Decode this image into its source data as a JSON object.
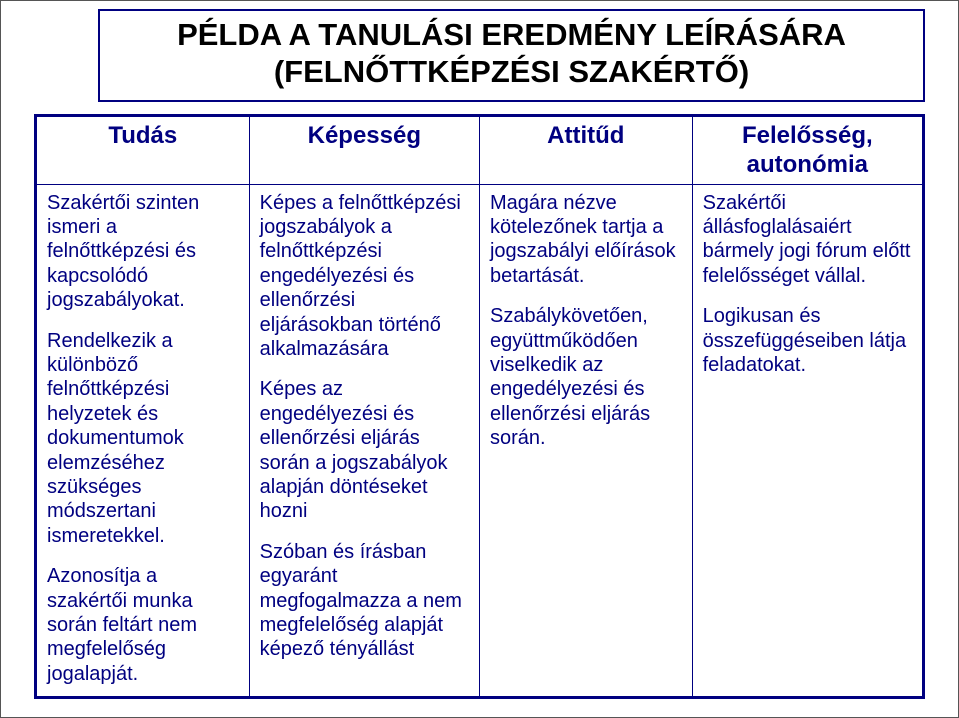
{
  "title": {
    "line1": "PÉLDA A TANULÁSI EREDMÉNY LEÍRÁSÁRA",
    "line2": "(FELNŐTTKÉPZÉSI SZAKÉRTŐ)"
  },
  "headers": {
    "col1": "Tudás",
    "col2": "Képesség",
    "col3": "Attitűd",
    "col4": "Felelősség, autonómia"
  },
  "cells": {
    "c1p1": "Szakértői szinten ismeri a felnőttképzési és kapcsolódó jogszabályokat.",
    "c1p2": "Rendelkezik a különböző felnőttképzési helyzetek és dokumentumok elemzéséhez szükséges módszertani ismeretekkel.",
    "c1p3": "Azonosítja a szakértői munka során feltárt nem megfelelőség jogalapját.",
    "c2p1": "Képes a felnőttképzési jogszabályok a felnőttképzési engedélyezési és ellenőrzési eljárásokban történő alkalmazására",
    "c2p2": "Képes az engedélyezési és ellenőrzési eljárás során a jogszabályok alapján döntéseket hozni",
    "c2p3": "Szóban és írásban egyaránt megfogalmazza a nem megfelelőség alapját képező tényállást",
    "c3p1": "Magára nézve kötelezőnek tartja a jogszabályi előírások betartását.",
    "c3p2": "Szabálykövetően, együttműködően viselkedik az engedélyezési és ellenőrzési eljárás során.",
    "c4p1": "Szakértői állásfoglalásaiért bármely jogi fórum előtt felelősséget vállal.",
    "c4p2": "Logikusan és összefüggéseiben látja feladatokat."
  },
  "colors": {
    "border": "#000080",
    "text": "#000080",
    "title_text": "#000000",
    "background": "#ffffff"
  },
  "fonts": {
    "title_size": 31,
    "header_size": 24,
    "body_size": 20,
    "family": "Arial"
  }
}
